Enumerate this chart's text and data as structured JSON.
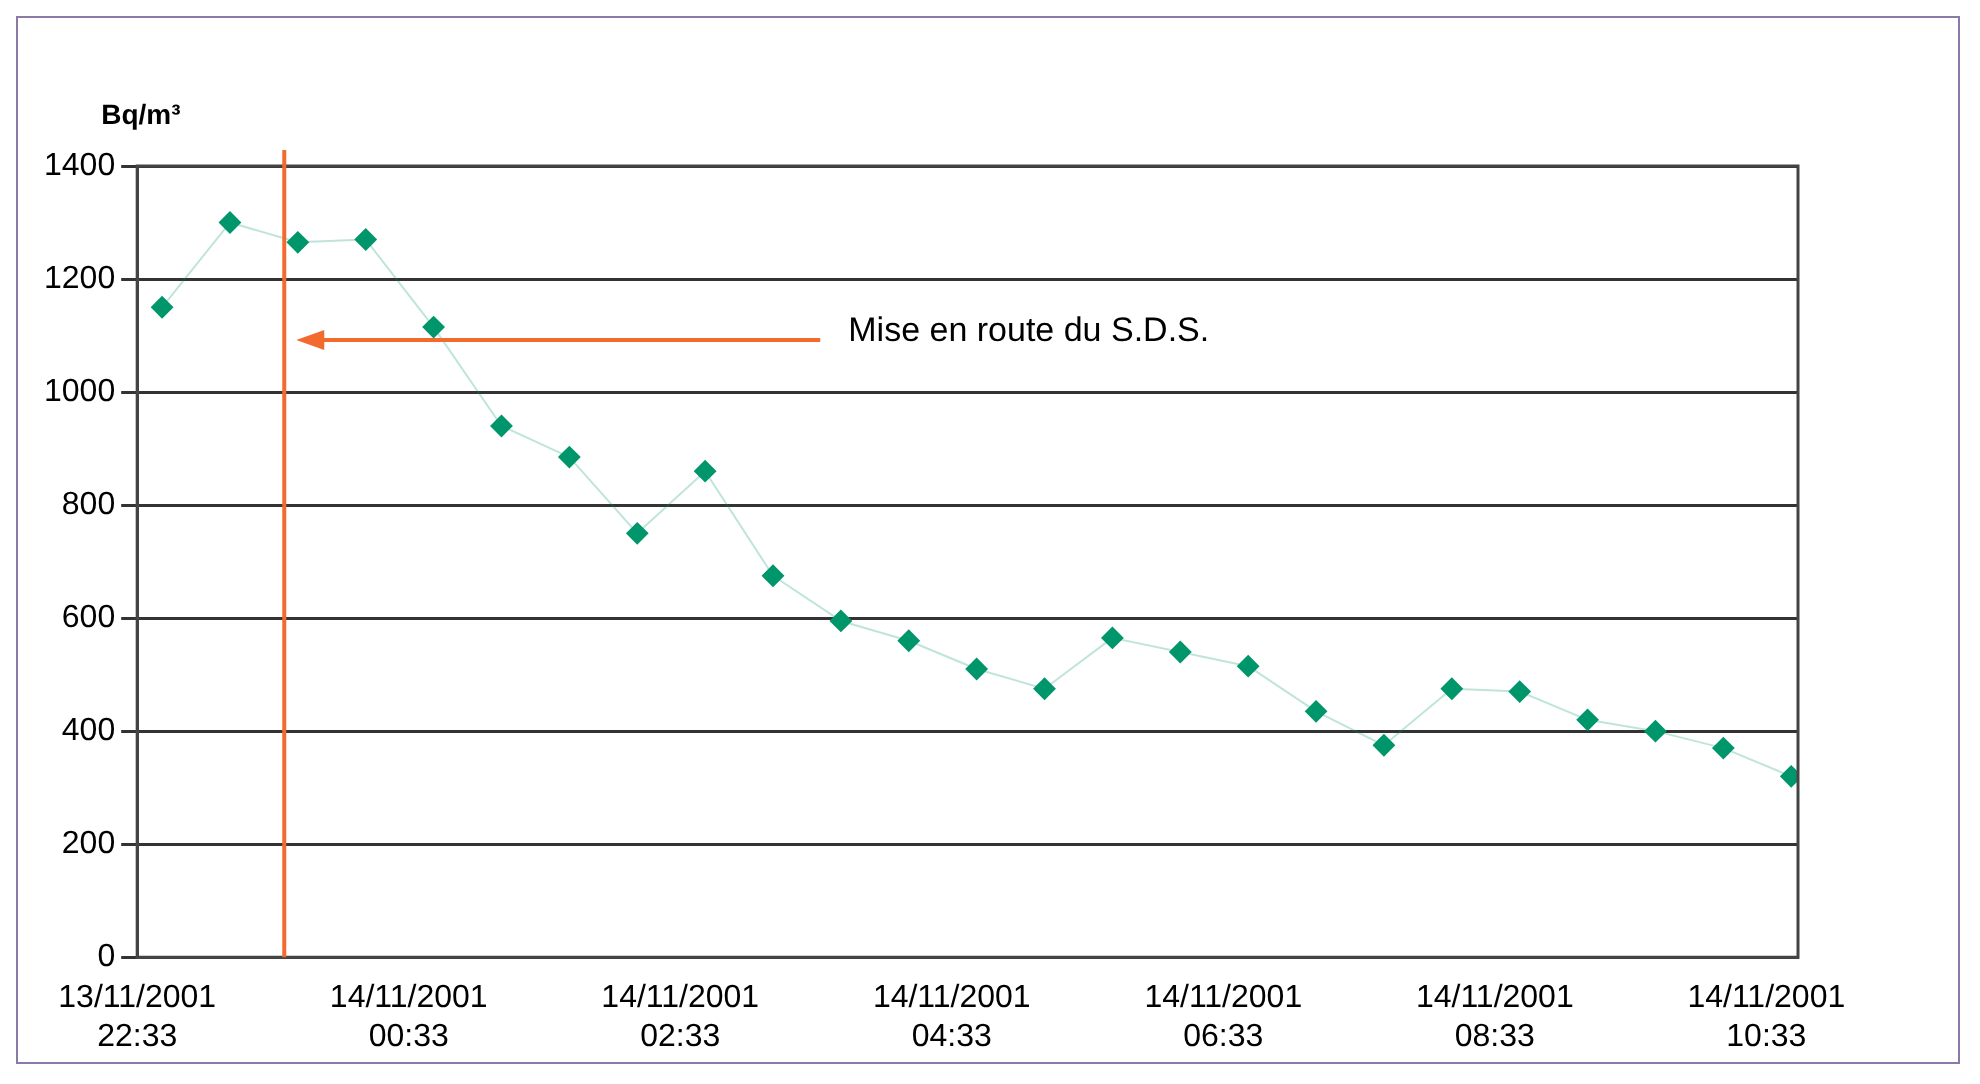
{
  "chart_data": {
    "type": "line",
    "ylabel": "Bq/m³",
    "x": [
      "2001-11-13T22:44",
      "2001-11-13T23:14",
      "2001-11-13T23:44",
      "2001-11-14T00:14",
      "2001-11-14T00:44",
      "2001-11-14T01:14",
      "2001-11-14T01:44",
      "2001-11-14T02:14",
      "2001-11-14T02:44",
      "2001-11-14T03:14",
      "2001-11-14T03:44",
      "2001-11-14T04:14",
      "2001-11-14T04:44",
      "2001-11-14T05:14",
      "2001-11-14T05:44",
      "2001-11-14T06:14",
      "2001-11-14T06:44",
      "2001-11-14T07:14",
      "2001-11-14T07:44",
      "2001-11-14T08:14",
      "2001-11-14T08:44",
      "2001-11-14T09:14",
      "2001-11-14T09:44",
      "2001-11-14T10:14",
      "2001-11-14T10:44"
    ],
    "series": [
      {
        "color": "#00966b",
        "values": [
          1150,
          1300,
          1265,
          1270,
          1115,
          940,
          885,
          750,
          860,
          675,
          595,
          560,
          510,
          475,
          565,
          540,
          515,
          435,
          375,
          475,
          470,
          420,
          400,
          370,
          320
        ]
      }
    ],
    "xlim": [
      "2001-11-13T22:33",
      "2001-11-14T10:47"
    ],
    "xticks": [
      {
        "value": "2001-11-13T22:33",
        "label": "13/11/2001 22:33"
      },
      {
        "value": "2001-11-14T00:33",
        "label": "14/11/2001 00:33"
      },
      {
        "value": "2001-11-14T02:33",
        "label": "14/11/2001 02:33"
      },
      {
        "value": "2001-11-14T04:33",
        "label": "14/11/2001 04:33"
      },
      {
        "value": "2001-11-14T06:33",
        "label": "14/11/2001 06:33"
      },
      {
        "value": "2001-11-14T08:33",
        "label": "14/11/2001 08:33"
      },
      {
        "value": "2001-11-14T10:33",
        "label": "14/11/2001 10:33"
      }
    ],
    "ylim": [
      0,
      1400
    ],
    "yticks": [
      0,
      200,
      400,
      600,
      800,
      1000,
      1200,
      1400
    ],
    "ref_lines": [
      {
        "axis": "x",
        "value": "2001-11-13T23:38",
        "color": "#f26a2e"
      }
    ],
    "annotations": [
      "Mise en route du S.D.S."
    ],
    "grid": "y",
    "marker": "diamond",
    "line_style": "solid",
    "legend": false
  }
}
